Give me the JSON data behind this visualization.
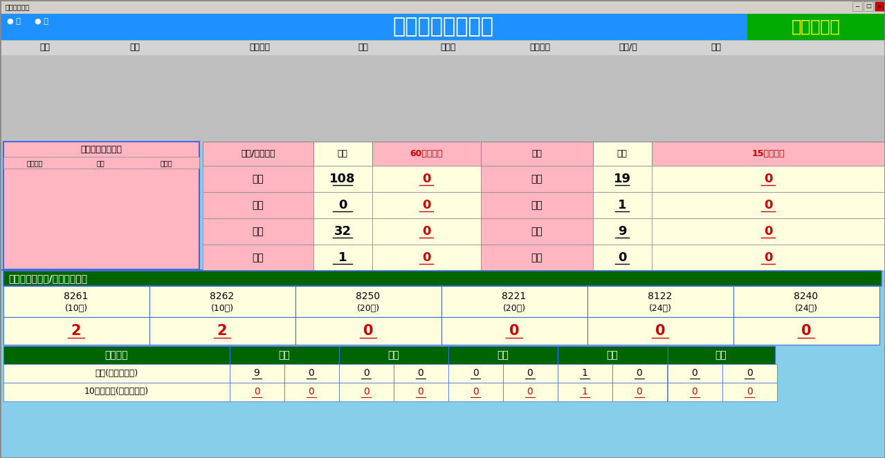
{
  "title": "檢體流向監控看板",
  "title_color": "#FFFFFF",
  "title_bg": "#1E90FF",
  "right_label": "同檢體加作",
  "right_label_bg": "#00AA00",
  "right_label_color": "#FFFF00",
  "window_title": "檢體流向監控",
  "header_cols": [
    "傳送",
    "站別",
    "檢體編號",
    "姓名",
    "病歷號",
    "傳送時間",
    "歷程/分",
    "儲位"
  ],
  "left_panel_title": "急診已採檢未傳送",
  "left_panel_header": [
    "檢體編號",
    "姓名",
    "病歷號"
  ],
  "mid_col_labels": [
    "人工/定時氣送",
    "總數",
    "60分鐘逾時",
    "氣送",
    "總數",
    "15分鐘逾時"
  ],
  "mid_col_colors": [
    "black",
    "black",
    "#CC0000",
    "black",
    "black",
    "#CC0000"
  ],
  "mid_col_bgs": [
    "#FFB6C1",
    "#FFFFE0",
    "#FFB6C1",
    "#FFB6C1",
    "#FFFFE0",
    "#FFB6C1"
  ],
  "rows": [
    {
      "label1": "門診",
      "val1": "108",
      "over1": "0",
      "label2": "門診",
      "val2": "19",
      "over2": "0"
    },
    {
      "label1": "急診",
      "val1": "0",
      "over1": "0",
      "label2": "急診",
      "val2": "1",
      "over2": "0"
    },
    {
      "label1": "住院",
      "val1": "32",
      "over1": "0",
      "label2": "住院",
      "val2": "9",
      "over2": "0"
    },
    {
      "label1": "其他",
      "val1": "1",
      "over1": "0",
      "label2": "其他",
      "val2": "0",
      "over2": "0"
    }
  ],
  "section2_title": "檢體逾時未傳送/自取至實驗室",
  "section2_bg": "#006400",
  "section2_color": "#FFFFFF",
  "section2_cols": [
    {
      "code": "8261",
      "time": "(10分)"
    },
    {
      "code": "8262",
      "time": "(10分)"
    },
    {
      "code": "8250",
      "time": "(20分)"
    },
    {
      "code": "8221",
      "time": "(20分)"
    },
    {
      "code": "8122",
      "time": "(24時)"
    },
    {
      "code": "8240",
      "time": "(24時)"
    }
  ],
  "section2_values": [
    "2",
    "2",
    "0",
    "0",
    "0",
    "0"
  ],
  "section3_header": [
    "前往站別",
    "生化",
    "血庫",
    "血液",
    "血清",
    "核醫"
  ],
  "section3_bg": "#006400",
  "section3_color": "#FFFFFF",
  "section3_row1_label": "總數(人工，氣送)",
  "section3_row1_vals": [
    "9",
    "0",
    "0",
    "0",
    "0",
    "0",
    "1",
    "0",
    "0",
    "0"
  ],
  "section3_row2_label": "10分鐘逾時(人工，氣送)",
  "section3_row2_vals": [
    "0",
    "0",
    "0",
    "0",
    "0",
    "0",
    "1",
    "0",
    "0",
    "0"
  ],
  "bg_light_blue": "#87CEEB",
  "bg_yellow": "#FFFFE0",
  "bg_pink": "#FFB6C1",
  "bg_gray": "#BEBEBE",
  "bg_gray2": "#D3D3D3",
  "border_color": "#4169E1",
  "text_red": "#CC0000"
}
